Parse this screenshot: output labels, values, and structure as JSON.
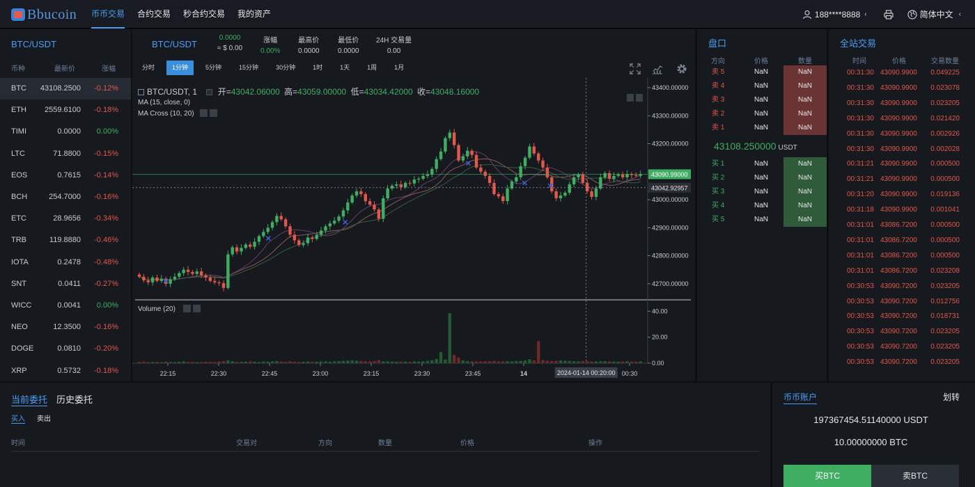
{
  "nav": {
    "logo": "Bbucoin",
    "links": [
      "币币交易",
      "合约交易",
      "秒合约交易",
      "我的资产"
    ],
    "active_index": 0,
    "user": "188****8888",
    "lang": "简体中文",
    "icons": [
      "user-icon",
      "chevron-left-icon",
      "printer-icon",
      "globe-icon"
    ]
  },
  "markets": {
    "title": "BTC/USDT",
    "headers": [
      "币种",
      "最新价",
      "涨幅"
    ],
    "rows": [
      {
        "coin": "BTC",
        "price": "43108.2500",
        "change": "-0.12%",
        "dir": "dn"
      },
      {
        "coin": "ETH",
        "price": "2559.6100",
        "change": "-0.18%",
        "dir": "dn"
      },
      {
        "coin": "TIMI",
        "price": "0.0000",
        "change": "0.00%",
        "dir": "up"
      },
      {
        "coin": "LTC",
        "price": "71.8800",
        "change": "-0.15%",
        "dir": "dn"
      },
      {
        "coin": "EOS",
        "price": "0.7615",
        "change": "-0.14%",
        "dir": "dn"
      },
      {
        "coin": "BCH",
        "price": "254.7000",
        "change": "-0.16%",
        "dir": "dn"
      },
      {
        "coin": "ETC",
        "price": "28.9656",
        "change": "-0.34%",
        "dir": "dn"
      },
      {
        "coin": "TRB",
        "price": "119.8880",
        "change": "-0.46%",
        "dir": "dn"
      },
      {
        "coin": "IOTA",
        "price": "0.2478",
        "change": "-0.48%",
        "dir": "dn"
      },
      {
        "coin": "SNT",
        "price": "0.0411",
        "change": "-0.27%",
        "dir": "dn"
      },
      {
        "coin": "WICC",
        "price": "0.0041",
        "change": "0.00%",
        "dir": "up"
      },
      {
        "coin": "NEO",
        "price": "12.3500",
        "change": "-0.16%",
        "dir": "dn"
      },
      {
        "coin": "DOGE",
        "price": "0.0810",
        "change": "-0.20%",
        "dir": "dn"
      },
      {
        "coin": "XRP",
        "price": "0.5732",
        "change": "-0.18%",
        "dir": "dn"
      }
    ]
  },
  "ticker": {
    "pair": "BTC/USDT",
    "last": "0.0000",
    "last_usd": "≈ $ 0.00",
    "change_label": "涨幅",
    "change": "0.00%",
    "high_label": "最高价",
    "high": "0.0000",
    "low_label": "最低价",
    "low": "0.0000",
    "vol_label": "24H 交易量",
    "vol": "0.00"
  },
  "timeframes": [
    "分时",
    "1分钟",
    "5分钟",
    "15分钟",
    "30分钟",
    "1时",
    "1天",
    "1周",
    "1月"
  ],
  "timeframe_active": 1,
  "chart_legend": {
    "symbol": "BTC/USDT, 1",
    "open_label": "开=",
    "open": "43042.06000",
    "high_label": "高=",
    "high": "43059.00000",
    "low_label": "低=",
    "low": "43034.42000",
    "close_label": "收=",
    "close": "43048.16000",
    "ma": "MA (15, close, 0)",
    "macross": "MA Cross (10, 20)",
    "volume": "Volume (20)"
  },
  "chart_data": {
    "type": "candlestick",
    "interval": "1m",
    "price_ticks": [
      "43400.00000",
      "43300.00000",
      "43200.00000",
      "43100.00000",
      "43000.00000",
      "42900.00000",
      "42800.00000",
      "42700.00000"
    ],
    "price_tick_values": [
      43400,
      43300,
      43200,
      43100,
      43000,
      42900,
      42800,
      42700
    ],
    "volume_ticks": [
      "40.00",
      "20.00",
      "0.00"
    ],
    "volume_tick_values": [
      40,
      20,
      0
    ],
    "time_ticks": [
      "22:15",
      "22:30",
      "22:45",
      "23:00",
      "23:15",
      "23:30",
      "23:45",
      "14",
      "00:15",
      "00:30"
    ],
    "current_price_label": "43090.99000",
    "current_price": 43090.99,
    "crosshair_price_label": "43042.92957",
    "crosshair_price": 43042.93,
    "crosshair_time": "2024-01-14 00:20:00",
    "closes": [
      42725,
      42712,
      42705,
      42722,
      42710,
      42718,
      42700,
      42716,
      42725,
      42738,
      42750,
      42742,
      42735,
      42744,
      42730,
      42722,
      42710,
      42705,
      42702,
      42685,
      42805,
      42830,
      42815,
      42828,
      42840,
      42832,
      42850,
      42870,
      42885,
      42900,
      42920,
      42942,
      42930,
      42905,
      42875,
      42855,
      42838,
      42845,
      42865,
      42860,
      42875,
      42890,
      42905,
      42915,
      42925,
      42940,
      42962,
      42990,
      43015,
      43030,
      43020,
      42995,
      42982,
      42965,
      42932,
      43005,
      43040,
      43050,
      43055,
      43045,
      43060,
      43058,
      43072,
      43075,
      43085,
      43090,
      43110,
      43145,
      43172,
      43220,
      43240,
      43195,
      43140,
      43155,
      43175,
      43160,
      43115,
      43100,
      43085,
      43060,
      43020,
      43012,
      42995,
      43040,
      43065,
      43080,
      43120,
      43150,
      43190,
      43165,
      43140,
      43115,
      43080,
      43030,
      43005,
      43015,
      43025,
      43055,
      43080,
      43090,
      43060,
      43030,
      43010,
      43040,
      43080,
      43095,
      43075,
      43085,
      43090,
      43080,
      43092,
      43088,
      43085,
      43091
    ],
    "volumes": [
      1,
      1.2,
      0.8,
      0.9,
      1.1,
      0.7,
      1.3,
      0.9,
      0.8,
      1.1,
      1.4,
      0.9,
      1,
      0.8,
      0.9,
      1.2,
      1.1,
      0.9,
      1.3,
      1.6,
      2.2,
      1.5,
      1.1,
      1,
      1.2,
      1.4,
      1.1,
      0.9,
      1.3,
      1.2,
      1.4,
      1.6,
      1.3,
      1.1,
      1.4,
      1.2,
      1,
      1.1,
      1.3,
      1.2,
      1.1,
      1.3,
      1.4,
      1.2,
      1.5,
      1.6,
      1.8,
      2,
      2.1,
      1.9,
      1.7,
      1.5,
      1.4,
      1.6,
      2.4,
      1.5,
      1.4,
      1.2,
      1.1,
      1.3,
      1.2,
      1.1,
      1.4,
      1.3,
      1.5,
      1.9,
      2.3,
      3.2,
      8.5,
      2.8,
      38.5,
      6.3,
      4.3,
      2.1,
      1.6,
      1.5,
      1.4,
      1.3,
      1.5,
      1.6,
      1.8,
      1.4,
      1.3,
      1.5,
      1.4,
      1.6,
      1.7,
      2.1,
      3,
      2.2,
      17,
      2.4,
      1.9,
      1.6,
      1.8,
      2.1,
      1.9,
      1.7,
      1.5,
      1.4,
      1.6,
      1.5,
      1.3,
      1.4,
      1.5,
      1.6,
      1.4,
      1.3,
      1.2,
      1.4,
      1.5,
      1.3,
      1.2,
      1.4
    ]
  },
  "orderbook": {
    "title": "盘口",
    "headers": [
      "方向",
      "价格",
      "数量"
    ],
    "asks": [
      {
        "side": "卖 5",
        "price": "NaN",
        "qty": "NaN"
      },
      {
        "side": "卖 4",
        "price": "NaN",
        "qty": "NaN"
      },
      {
        "side": "卖 3",
        "price": "NaN",
        "qty": "NaN"
      },
      {
        "side": "卖 2",
        "price": "NaN",
        "qty": "NaN"
      },
      {
        "side": "卖 1",
        "price": "NaN",
        "qty": "NaN"
      }
    ],
    "last_price": "43108.250000",
    "last_unit": "USDT",
    "bids": [
      {
        "side": "买 1",
        "price": "NaN",
        "qty": "NaN"
      },
      {
        "side": "买 2",
        "price": "NaN",
        "qty": "NaN"
      },
      {
        "side": "买 3",
        "price": "NaN",
        "qty": "NaN"
      },
      {
        "side": "买 4",
        "price": "NaN",
        "qty": "NaN"
      },
      {
        "side": "买 5",
        "price": "NaN",
        "qty": "NaN"
      }
    ]
  },
  "trades": {
    "title": "全站交易",
    "headers": [
      "时间",
      "价格",
      "交易数量"
    ],
    "rows": [
      [
        "00:31:30",
        "43090.9900",
        "0.049225"
      ],
      [
        "00:31:30",
        "43090.9900",
        "0.023078"
      ],
      [
        "00:31:30",
        "43090.9900",
        "0.023205"
      ],
      [
        "00:31:30",
        "43090.9900",
        "0.021420"
      ],
      [
        "00:31:30",
        "43090.9900",
        "0.002926"
      ],
      [
        "00:31:30",
        "43090.9900",
        "0.002028"
      ],
      [
        "00:31:21",
        "43090.9900",
        "0.000500"
      ],
      [
        "00:31:21",
        "43090.9900",
        "0.000500"
      ],
      [
        "00:31:20",
        "43090.9900",
        "0.019136"
      ],
      [
        "00:31:18",
        "43090.9900",
        "0.001041"
      ],
      [
        "00:31:01",
        "43086.7200",
        "0.000500"
      ],
      [
        "00:31:01",
        "43086.7200",
        "0.000500"
      ],
      [
        "00:31:01",
        "43086.7200",
        "0.000500"
      ],
      [
        "00:31:01",
        "43086.7200",
        "0.023208"
      ],
      [
        "00:30:53",
        "43090.7200",
        "0.023205"
      ],
      [
        "00:30:53",
        "43090.7200",
        "0.012756"
      ],
      [
        "00:30:53",
        "43090.7200",
        "0.018731"
      ],
      [
        "00:30:53",
        "43090.7200",
        "0.023205"
      ],
      [
        "00:30:53",
        "43090.7200",
        "0.023205"
      ],
      [
        "00:30:53",
        "43090.7200",
        "0.023205"
      ]
    ]
  },
  "orders": {
    "tabs": [
      "当前委托",
      "历史委托"
    ],
    "subtabs": [
      "买入",
      "卖出"
    ],
    "headers": [
      "时间",
      "交易对",
      "方向",
      "数量",
      "价格",
      "操作"
    ]
  },
  "account": {
    "title": "币币账户",
    "transfer": "划转",
    "usdt": "197367454.51140000 USDT",
    "btc": "10.00000000 BTC",
    "buy": "买BTC",
    "sell": "卖BTC"
  }
}
